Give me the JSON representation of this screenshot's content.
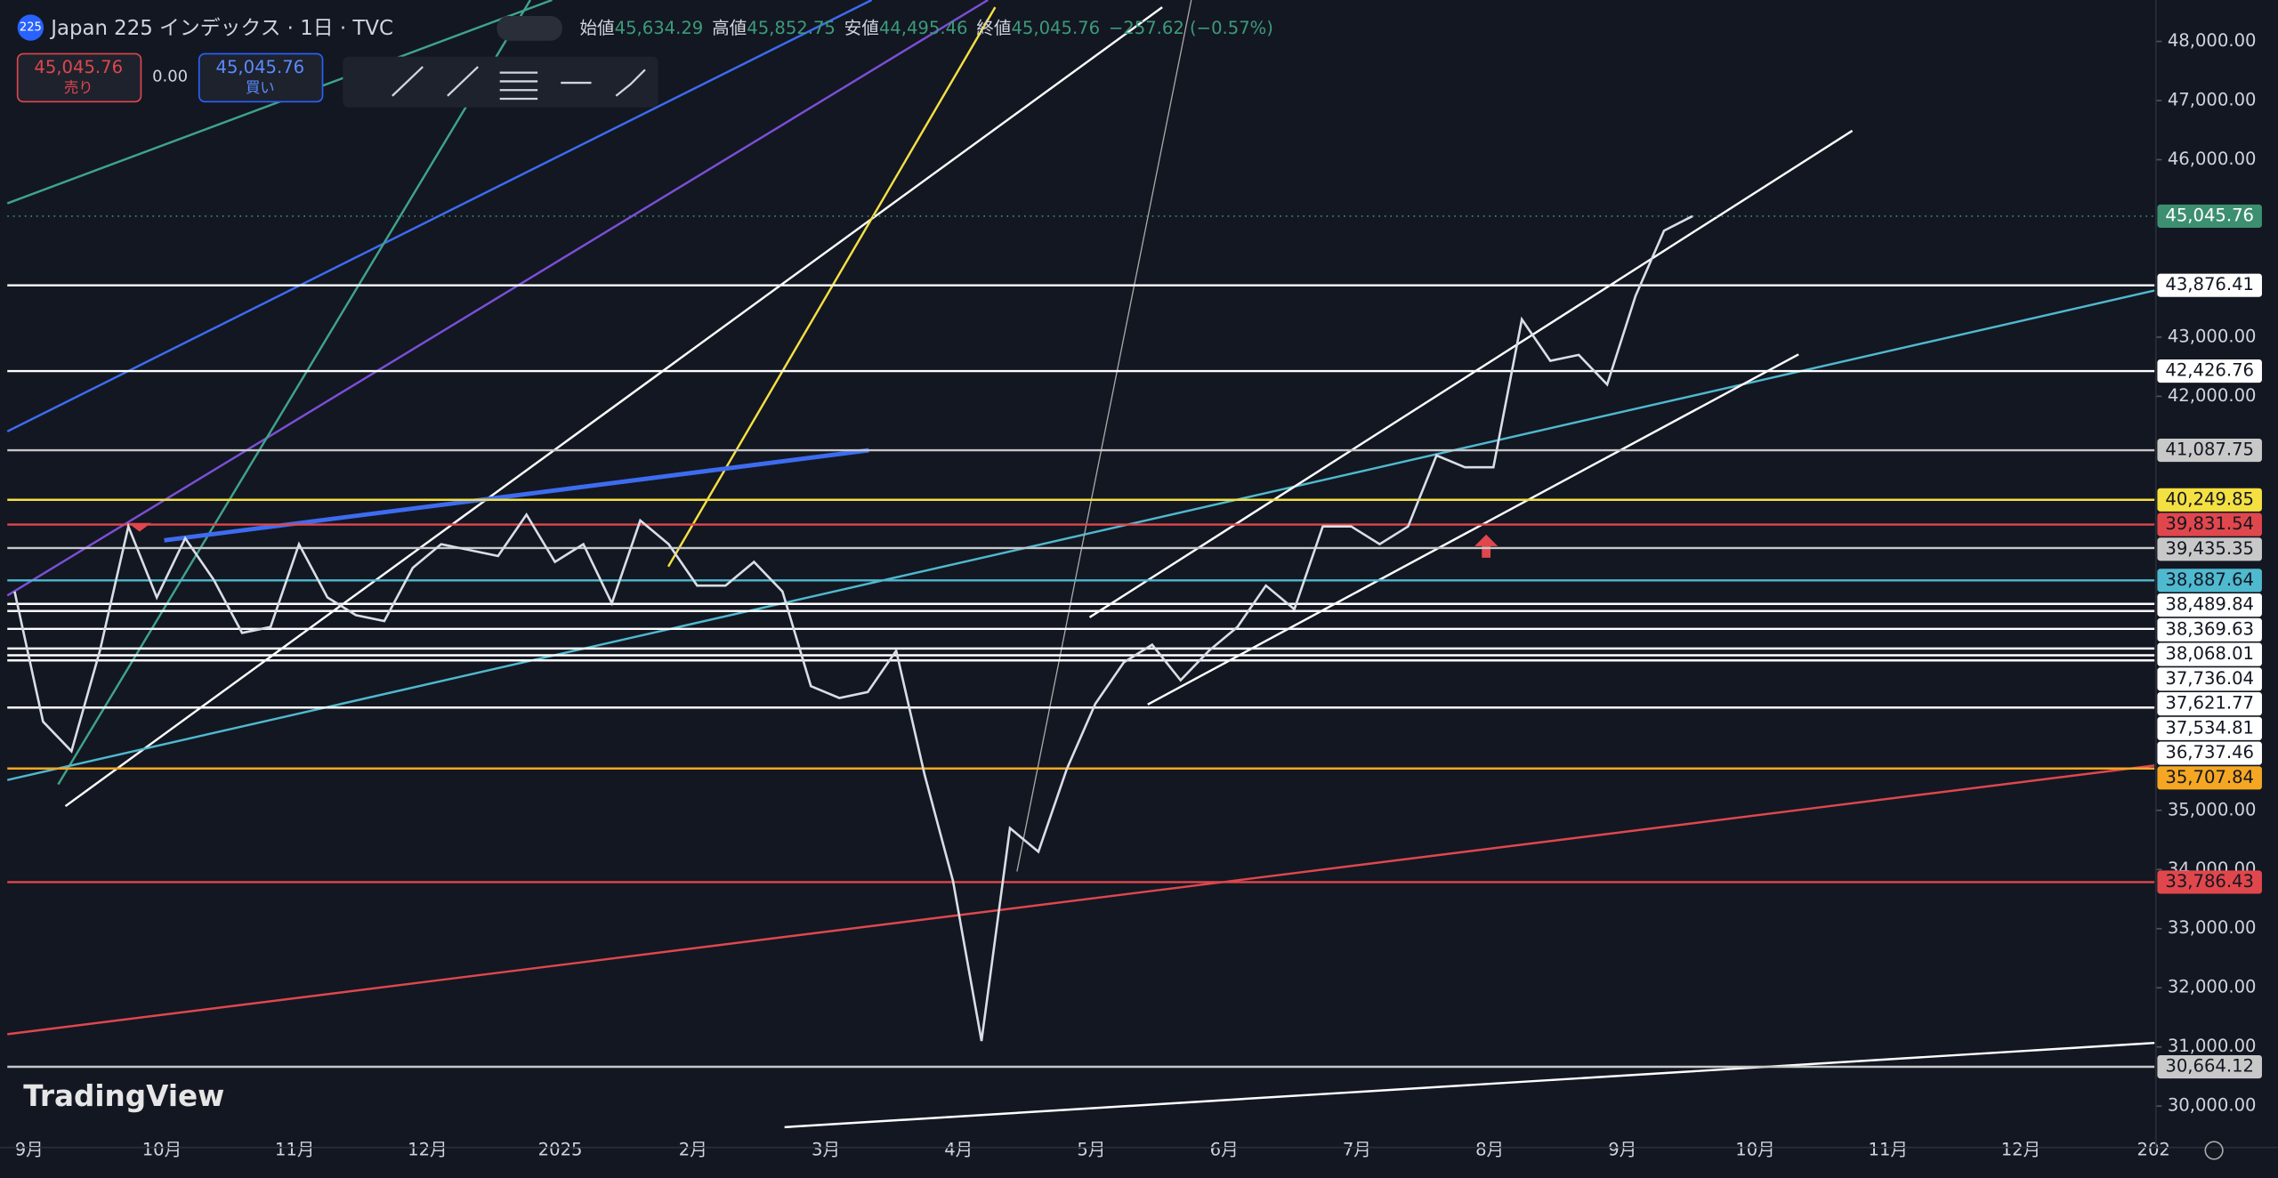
{
  "header": {
    "symbol_badge": "225",
    "title": "Japan 225 インデックス · 1日 · TVC",
    "ohlc": [
      {
        "label": "始値",
        "value": "45,634.29"
      },
      {
        "label": "高値",
        "value": "45,852.75"
      },
      {
        "label": "安値",
        "value": "44,495.46"
      },
      {
        "label": "終値",
        "value": "45,045.76"
      }
    ],
    "change": "−257.62 (−0.57%)"
  },
  "trade_panel": {
    "sell_price": "45,045.76",
    "sell_label": "売り",
    "spread": "0.00",
    "buy_price": "45,045.76",
    "buy_label": "買い"
  },
  "watermark": "TradingView",
  "chart_data": {
    "type": "line",
    "xtick_labels": [
      "9月",
      "10月",
      "11月",
      "12月",
      "2025",
      "2月",
      "3月",
      "4月",
      "5月",
      "6月",
      "7月",
      "8月",
      "9月",
      "10月",
      "11月",
      "12月",
      "202"
    ],
    "series": [
      {
        "color": "#d9dde6",
        "values": [
          38700,
          36500,
          36000,
          37700,
          39800,
          38600,
          39600,
          38900,
          38000,
          38100,
          39500,
          38600,
          38300,
          38200,
          39100,
          39500,
          39400,
          39300,
          40000,
          39200,
          39500,
          38500,
          39900,
          39500,
          38800,
          38800,
          39200,
          38700,
          37100,
          36900,
          37000,
          37700,
          35600,
          33800,
          31100,
          34700,
          34300,
          35700,
          36800,
          37500,
          37800,
          37200,
          37700,
          38100,
          38800,
          38400,
          39800,
          39800,
          39500,
          39800,
          41000,
          40800,
          40800,
          43300,
          42600,
          42700,
          42200,
          43700,
          44800,
          45045.76
        ]
      }
    ],
    "ylim": [
      29300,
      48700
    ],
    "yticks": [
      {
        "value": 48000,
        "label": "48,000.00"
      },
      {
        "value": 47000,
        "label": "47,000.00"
      },
      {
        "value": 46000,
        "label": "46,000.00"
      },
      {
        "value": 43000,
        "label": "43,000.00"
      },
      {
        "value": 42000,
        "label": "42,000.00"
      },
      {
        "value": 35000,
        "label": "35,000.00"
      },
      {
        "value": 34000,
        "label": "34,000.00"
      },
      {
        "value": 33000,
        "label": "33,000.00"
      },
      {
        "value": 32000,
        "label": "32,000.00"
      },
      {
        "value": 31000,
        "label": "31,000.00"
      },
      {
        "value": 30000,
        "label": "30,000.00"
      }
    ],
    "last_price": {
      "value": 45045.76,
      "label": "45,045.76",
      "color": "#3c8f6f"
    },
    "levels": [
      {
        "value": 43876.41,
        "label": "43,876.41",
        "color": "#ffffff"
      },
      {
        "value": 42426.76,
        "label": "42,426.76",
        "color": "#ffffff"
      },
      {
        "value": 41087.75,
        "label": "41,087.75",
        "color": "#c8c8c8"
      },
      {
        "value": 40249.85,
        "label": "40,249.85",
        "color": "#f5e042"
      },
      {
        "value": 39831.54,
        "label": "39,831.54",
        "color": "#e0474c"
      },
      {
        "value": 39435.35,
        "label": "39,435.35",
        "color": "#c8c8c8"
      },
      {
        "value": 38887.64,
        "label": "38,887.64",
        "color": "#4fb9cf"
      },
      {
        "value": 38489.84,
        "label": "38,489.84",
        "color": "#ffffff"
      },
      {
        "value": 38369.63,
        "label": "38,369.63",
        "color": "#ffffff"
      },
      {
        "value": 38068.01,
        "label": "38,068.01",
        "color": "#ffffff"
      },
      {
        "value": 37736.04,
        "label": "37,736.04",
        "color": "#ffffff"
      },
      {
        "value": 37621.77,
        "label": "37,621.77",
        "color": "#ffffff"
      },
      {
        "value": 37534.81,
        "label": "37,534.81",
        "color": "#ffffff"
      },
      {
        "value": 36737.46,
        "label": "36,737.46",
        "color": "#ffffff"
      },
      {
        "value": 35707.84,
        "label": "35,707.84",
        "color": "#f5a623"
      },
      {
        "value": 33786.43,
        "label": "33,786.43",
        "color": "#e0474c"
      },
      {
        "value": 30664.12,
        "label": "30,664.12",
        "color": "#c8c8c8"
      }
    ]
  }
}
